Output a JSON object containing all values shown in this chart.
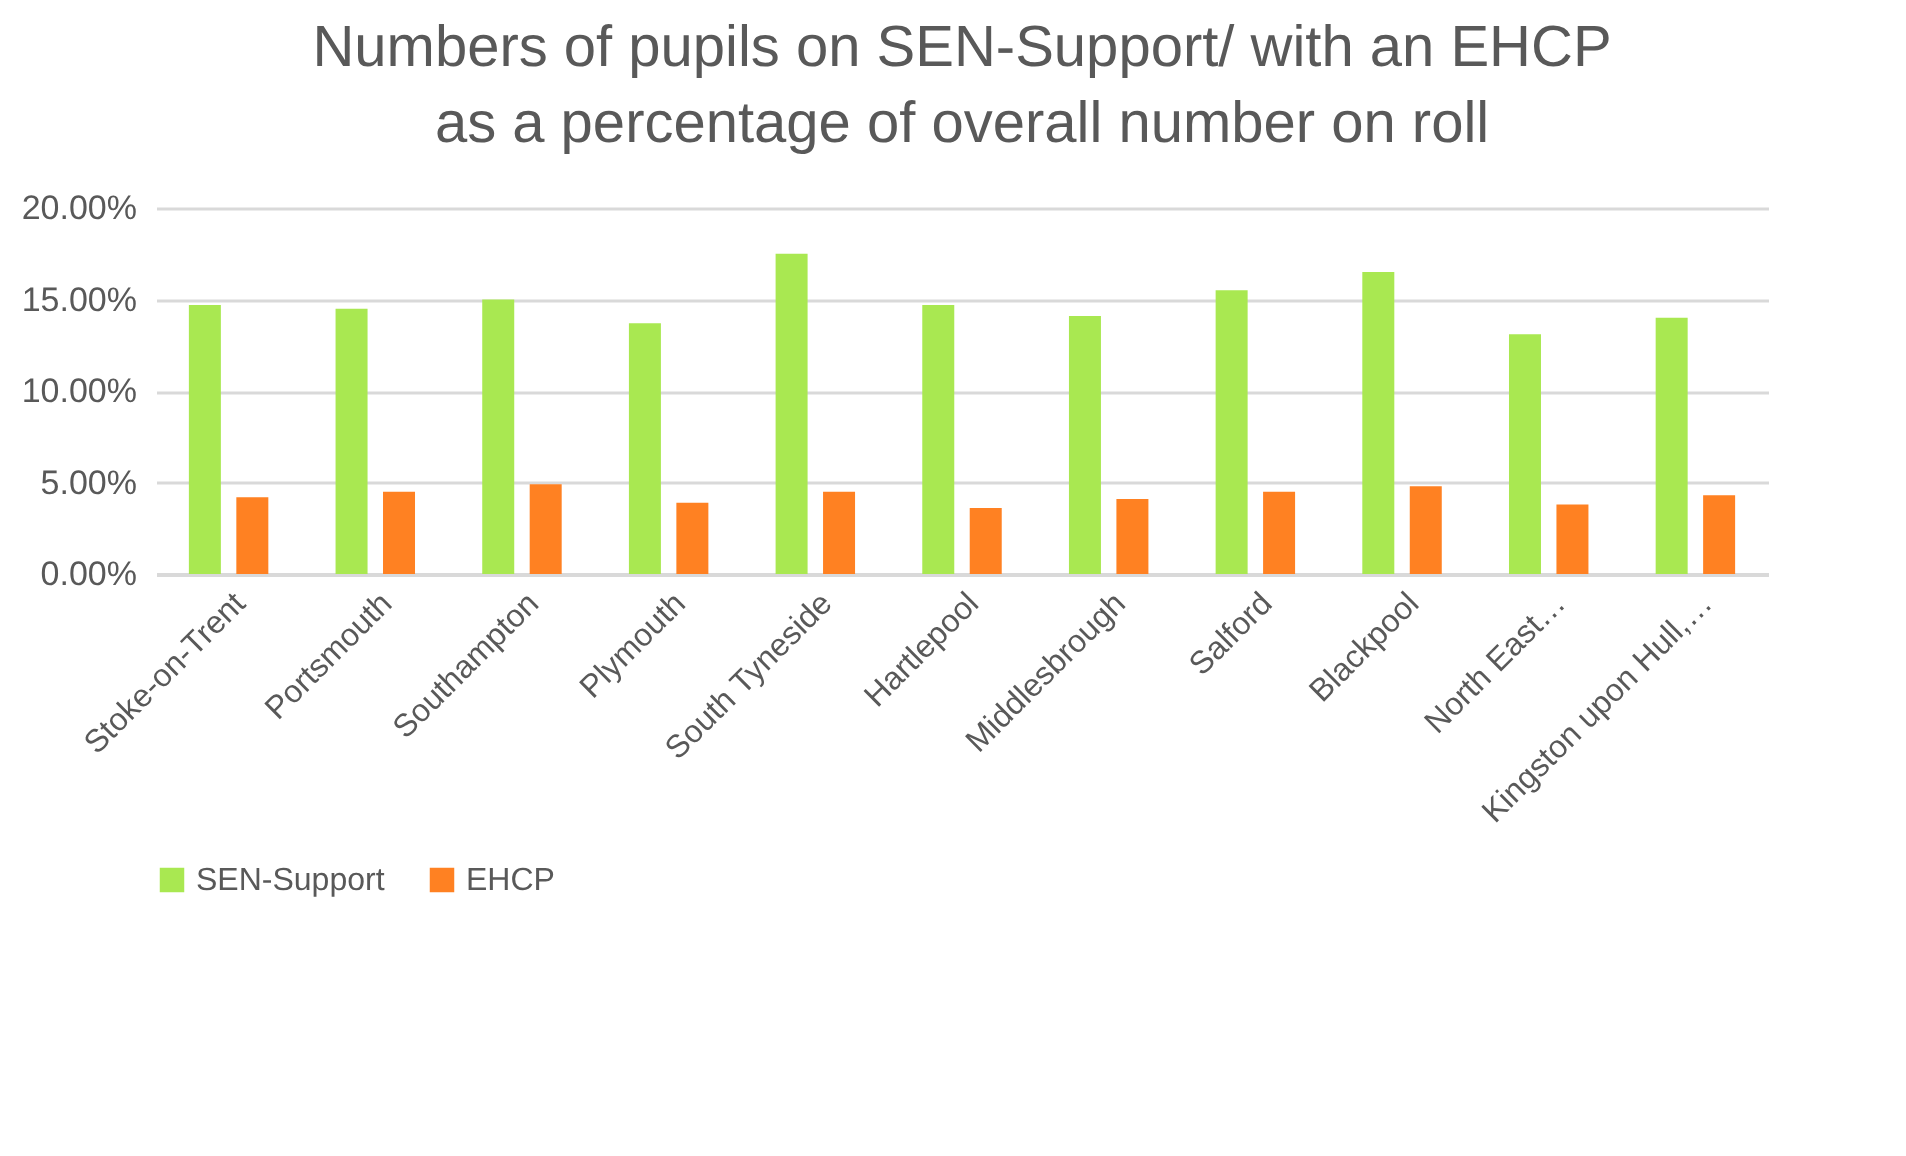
{
  "chart_data": {
    "type": "bar",
    "title": [
      "Numbers of pupils on SEN-Support/ with an EHCP",
      "as a percentage of overall number on roll"
    ],
    "categories": [
      "Stoke-on-Trent",
      "Portsmouth",
      "Southampton",
      "Plymouth",
      "South Tyneside",
      "Hartlepool",
      "Middlesbrough",
      "Salford",
      "Blackpool",
      "North East…",
      "Kingston upon Hull,…"
    ],
    "series": [
      {
        "name": "SEN-Support",
        "color": "#a9e851",
        "values": [
          14.7,
          14.5,
          15.0,
          13.7,
          17.5,
          14.7,
          14.1,
          15.5,
          16.5,
          13.1,
          14.0
        ]
      },
      {
        "name": "EHCP",
        "color": "#ff8122",
        "values": [
          4.2,
          4.5,
          4.9,
          3.9,
          4.5,
          3.6,
          4.1,
          4.5,
          4.8,
          3.8,
          4.3
        ]
      }
    ],
    "ylim": [
      0,
      20
    ],
    "yticks": [
      {
        "value": 0,
        "label": "0.00%"
      },
      {
        "value": 5,
        "label": "5.00%"
      },
      {
        "value": 10,
        "label": "10.00%"
      },
      {
        "value": 15,
        "label": "15.00%"
      },
      {
        "value": 20,
        "label": "20.00%"
      }
    ],
    "grid": "y",
    "legend": "bottom"
  }
}
